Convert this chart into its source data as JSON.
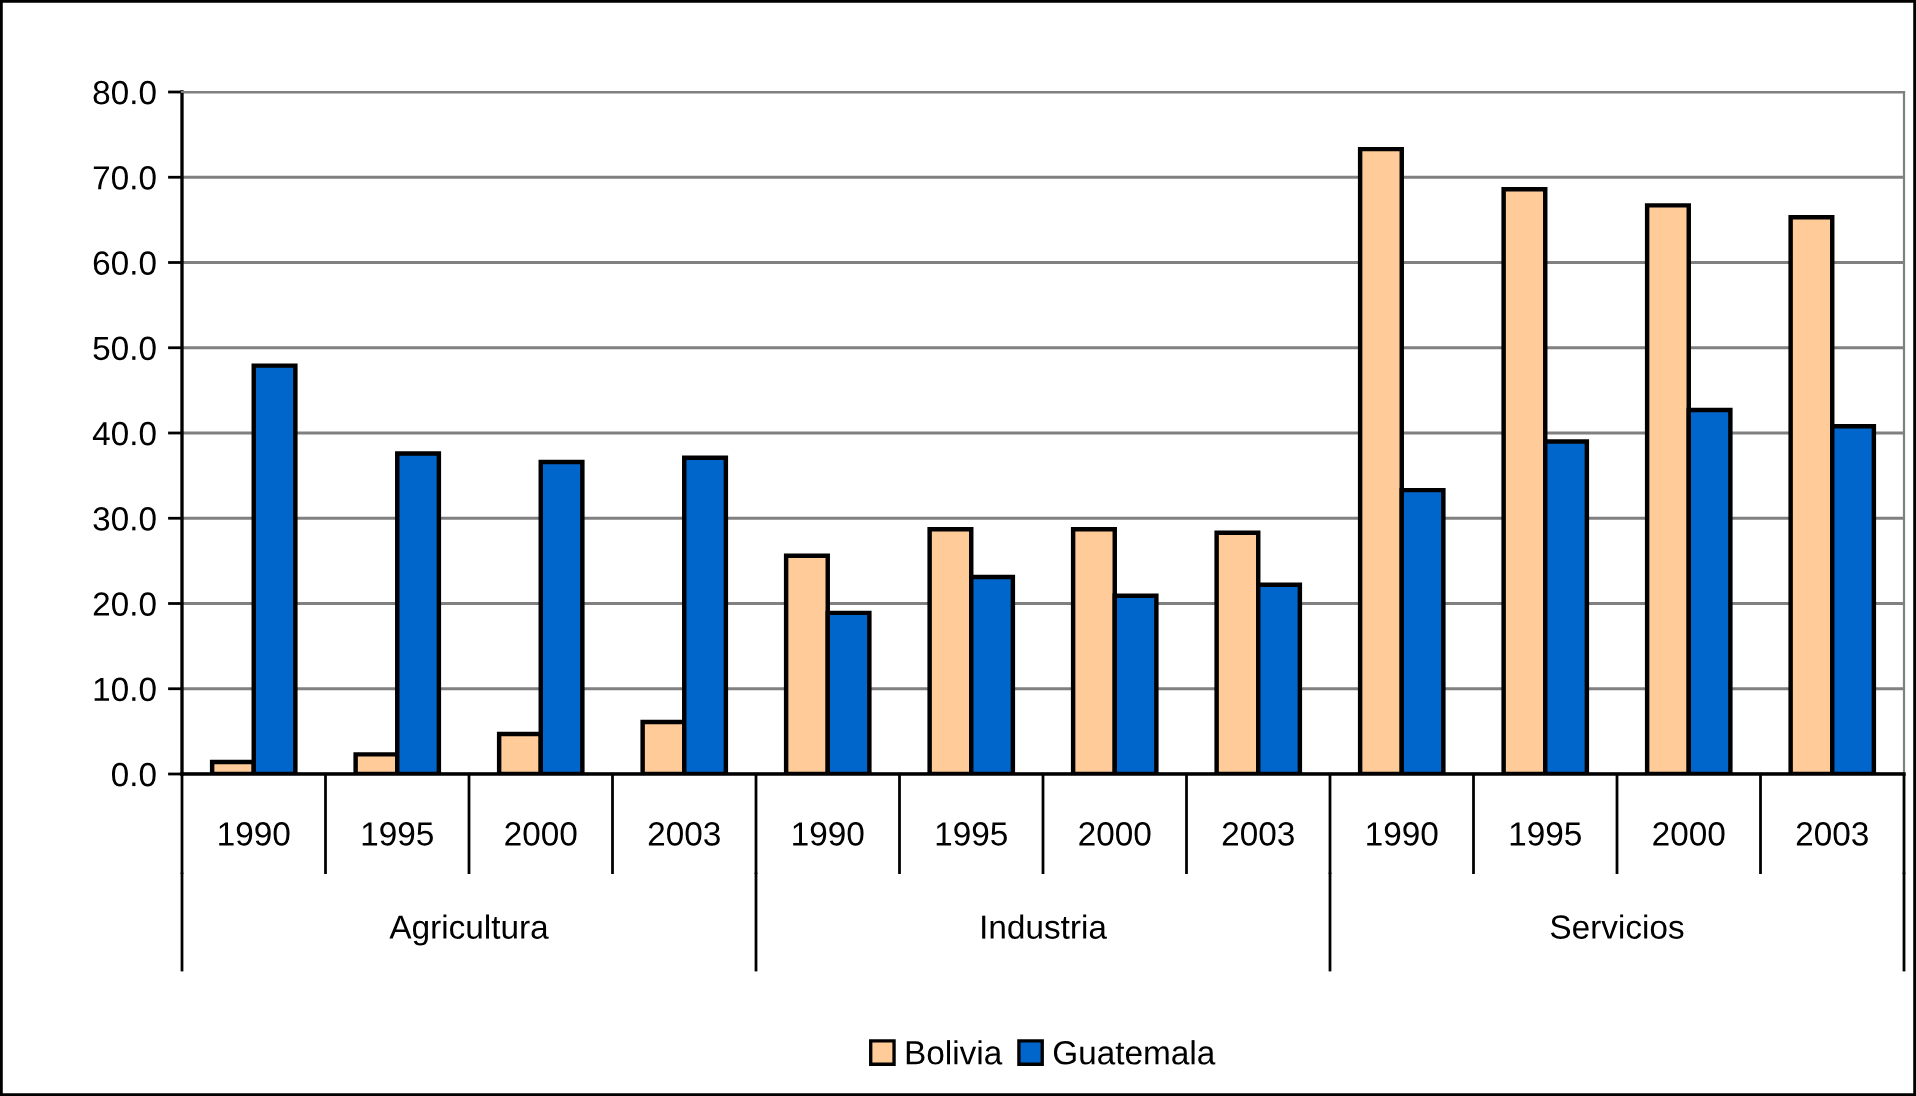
{
  "chart_data": {
    "type": "bar",
    "categories": [
      "1990",
      "1995",
      "2000",
      "2003",
      "1990",
      "1995",
      "2000",
      "2003",
      "1990",
      "1995",
      "2000",
      "2003"
    ],
    "annotations": [
      "Agricultura",
      "Industria",
      "Servicios"
    ],
    "series": [
      {
        "name": "Bolivia",
        "color": "#ffcc99",
        "values": [
          1.4,
          2.3,
          4.7,
          6.1,
          25.6,
          28.7,
          28.7,
          28.3,
          73.3,
          68.6,
          66.7,
          65.3
        ]
      },
      {
        "name": "Guatemala",
        "color": "#0066cc",
        "values": [
          47.9,
          37.6,
          36.6,
          37.1,
          18.9,
          23.1,
          20.9,
          22.2,
          33.3,
          39.0,
          42.7,
          40.8
        ]
      }
    ],
    "ylim": [
      0,
      80
    ],
    "yticks": [
      {
        "value": 0,
        "label": "0.0"
      },
      {
        "value": 10,
        "label": "10.0"
      },
      {
        "value": 20,
        "label": "20.0"
      },
      {
        "value": 30,
        "label": "30.0"
      },
      {
        "value": 40,
        "label": "40.0"
      },
      {
        "value": 50,
        "label": "50.0"
      },
      {
        "value": 60,
        "label": "60.0"
      },
      {
        "value": 70,
        "label": "70.0"
      },
      {
        "value": 80,
        "label": "80.0"
      }
    ],
    "grid": "y",
    "legend": "bottom"
  }
}
